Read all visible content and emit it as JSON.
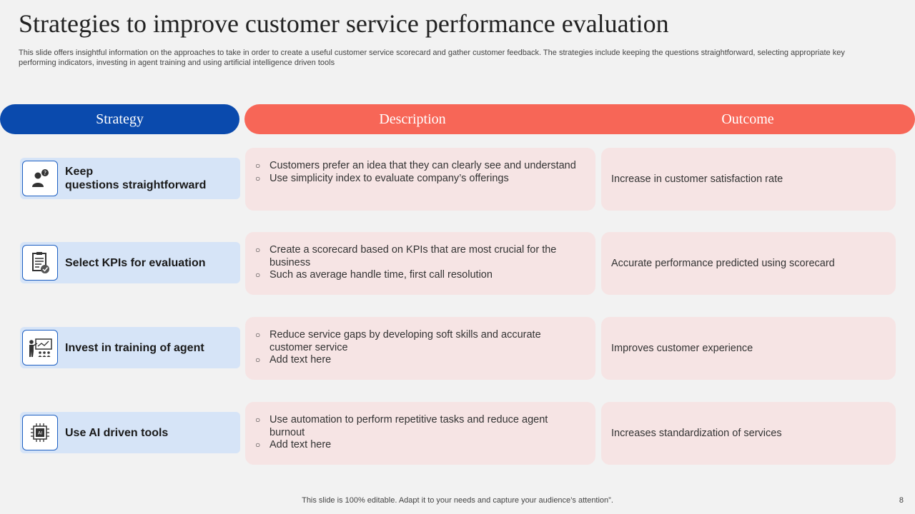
{
  "title": "Strategies to improve customer service performance evaluation",
  "subtitle": "This slide offers insightful information on the approaches to take in order to create a useful customer service scorecard and gather customer feedback. The strategies include keeping the questions straightforward, selecting appropriate key performing indicators, investing in agent training and using artificial intelligence driven tools",
  "headers": {
    "strategy": "Strategy",
    "description": "Description",
    "outcome": "Outcome"
  },
  "colors": {
    "strategy_header": "#0a4aad",
    "orange_header": "#f76657",
    "strategy_cell": "#d6e4f7",
    "content_cell": "#f6e4e4"
  },
  "bullet_glyph": "○",
  "rows": [
    {
      "strategy_line1": "Keep",
      "strategy_line2": "questions straightforward",
      "icon": "person-question-icon",
      "description": [
        "Customers prefer an idea that they can clearly see and understand",
        "Use simplicity index to evaluate company’s offerings"
      ],
      "outcome": "Increase in customer satisfaction rate"
    },
    {
      "strategy_line1": "Select KPIs for evaluation",
      "strategy_line2": "",
      "icon": "checklist-icon",
      "description": [
        "Create a scorecard based on KPIs that are most crucial for the business",
        "Such as average handle time, first call resolution"
      ],
      "outcome": "Accurate performance predicted using scorecard"
    },
    {
      "strategy_line1": "Invest in training of agent",
      "strategy_line2": "",
      "icon": "training-presentation-icon",
      "description": [
        "Reduce service gaps by developing  soft skills and accurate customer service",
        "Add text here"
      ],
      "outcome": "Improves customer experience"
    },
    {
      "strategy_line1": "Use AI driven tools",
      "strategy_line2": "",
      "icon": "ai-chip-icon",
      "description": [
        "Use automation to perform repetitive tasks and reduce agent burnout",
        "Add text here"
      ],
      "outcome": "Increases standardization of services"
    }
  ],
  "footer": "This slide is 100% editable. Adapt it to your needs and capture your audience’s attention”.",
  "page_number": "8"
}
